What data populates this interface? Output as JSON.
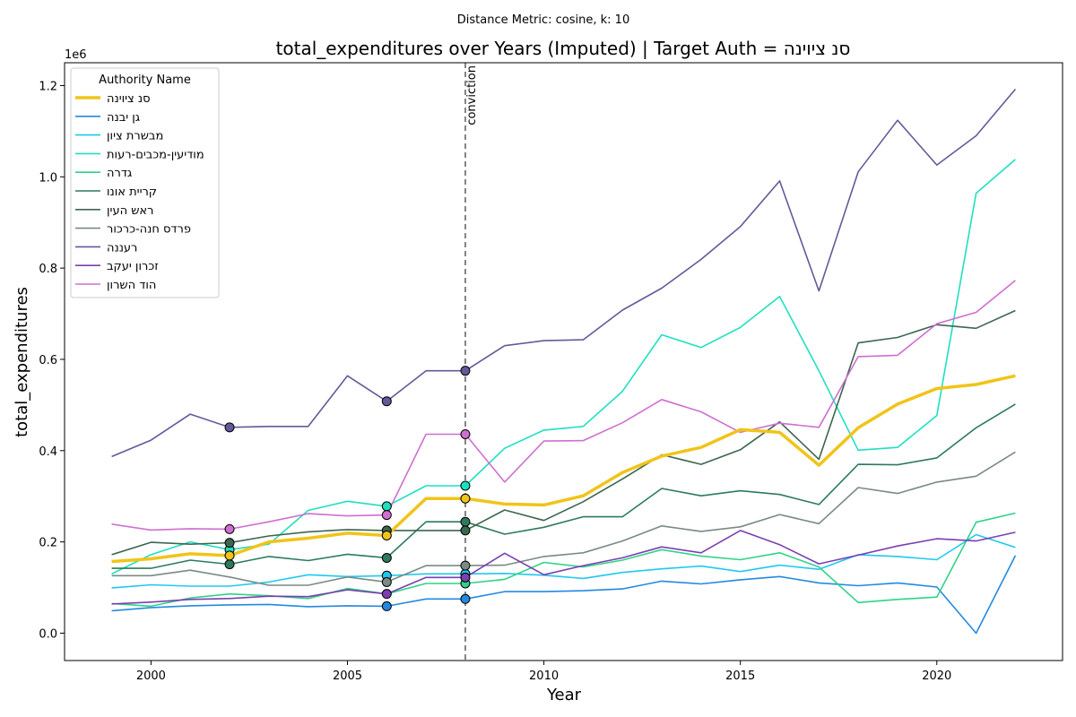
{
  "suptitle": "Distance Metric: cosine, k: 10",
  "chart_data": {
    "type": "line",
    "title": "total_expenditures over Years (Imputed) | Target Auth = סנ ציוינה",
    "xlabel": "Year",
    "ylabel": "total_expenditures",
    "y_offset_label": "1e6",
    "x_ticks": [
      2000,
      2005,
      2010,
      2015,
      2020
    ],
    "y_ticks": [
      "0.0",
      "0.2",
      "0.4",
      "0.6",
      "0.8",
      "1.0",
      "1.2"
    ],
    "xlim": [
      1997.8,
      2023.2
    ],
    "ylim": [
      -0.06,
      1.25
    ],
    "y_units": "millions",
    "grid": false,
    "legend_title": "Authority Name",
    "legend_position": "upper-left",
    "vline": {
      "x": 2008,
      "label": "conviction"
    },
    "x": [
      1999,
      2000,
      2001,
      2002,
      2003,
      2004,
      2005,
      2006,
      2007,
      2008,
      2009,
      2010,
      2011,
      2012,
      2013,
      2014,
      2015,
      2016,
      2017,
      2018,
      2019,
      2020,
      2021,
      2022
    ],
    "series": [
      {
        "name": "סנ ציוינה",
        "color": "#f0c419",
        "target": true,
        "values": [
          0.157,
          0.163,
          0.174,
          0.17,
          0.2,
          0.208,
          0.219,
          0.214,
          0.295,
          0.295,
          0.283,
          0.281,
          0.301,
          0.352,
          0.388,
          0.407,
          0.446,
          0.44,
          0.368,
          0.45,
          0.502,
          0.536,
          0.545,
          0.564
        ],
        "imputed_years": [
          2002,
          2006,
          2008
        ]
      },
      {
        "name": "גן יבנה",
        "color": "#2389e0",
        "values": [
          0.049,
          0.056,
          0.06,
          0.062,
          0.063,
          0.058,
          0.06,
          0.059,
          0.075,
          0.075,
          0.091,
          0.091,
          0.093,
          0.097,
          0.114,
          0.108,
          0.117,
          0.124,
          0.11,
          0.104,
          0.11,
          0.101,
          0.0,
          0.17
        ],
        "imputed_years": [
          2006,
          2008
        ]
      },
      {
        "name": "מבשרת ציון",
        "color": "#1fc8f0",
        "values": [
          0.099,
          0.106,
          0.103,
          0.103,
          0.112,
          0.128,
          0.124,
          0.126,
          0.13,
          0.13,
          0.131,
          0.127,
          0.12,
          0.133,
          0.141,
          0.147,
          0.135,
          0.149,
          0.14,
          0.172,
          0.168,
          0.161,
          0.216,
          0.188
        ],
        "imputed_years": [
          2006,
          2008
        ]
      },
      {
        "name": "מודיעין-מכבים-רעות",
        "color": "#1ee0c0",
        "values": [
          0.13,
          0.172,
          0.2,
          0.183,
          0.195,
          0.269,
          0.289,
          0.278,
          0.323,
          0.323,
          0.405,
          0.445,
          0.453,
          0.53,
          0.654,
          0.626,
          0.67,
          0.738,
          0.575,
          0.401,
          0.407,
          0.477,
          0.964,
          1.038
        ],
        "imputed_years": [
          2002,
          2006,
          2008
        ]
      },
      {
        "name": "גדרה",
        "color": "#2ed488",
        "values": [
          0.065,
          0.059,
          0.077,
          0.086,
          0.082,
          0.076,
          0.098,
          0.086,
          0.109,
          0.109,
          0.118,
          0.155,
          0.145,
          0.16,
          0.183,
          0.169,
          0.161,
          0.176,
          0.145,
          0.067,
          0.074,
          0.079,
          0.243,
          0.263
        ],
        "imputed_years": [
          2008
        ]
      },
      {
        "name": "קריית אונו",
        "color": "#2d7a5c",
        "values": [
          0.142,
          0.142,
          0.16,
          0.151,
          0.168,
          0.159,
          0.173,
          0.165,
          0.244,
          0.244,
          0.217,
          0.232,
          0.255,
          0.255,
          0.317,
          0.301,
          0.312,
          0.304,
          0.282,
          0.37,
          0.369,
          0.384,
          0.45,
          0.502
        ],
        "imputed_years": [
          2002,
          2006,
          2008
        ]
      },
      {
        "name": "ראש העין",
        "color": "#3d6650",
        "values": [
          0.172,
          0.199,
          0.195,
          0.198,
          0.213,
          0.222,
          0.227,
          0.225,
          0.225,
          0.225,
          0.27,
          0.247,
          0.288,
          0.338,
          0.391,
          0.37,
          0.402,
          0.463,
          0.381,
          0.636,
          0.648,
          0.676,
          0.668,
          0.707
        ],
        "imputed_years": [
          2002,
          2006,
          2008
        ]
      },
      {
        "name": "פרדס חנה-כרכור",
        "color": "#7a8a85",
        "values": [
          0.126,
          0.126,
          0.138,
          0.123,
          0.105,
          0.105,
          0.123,
          0.112,
          0.148,
          0.148,
          0.149,
          0.168,
          0.176,
          0.202,
          0.235,
          0.223,
          0.233,
          0.26,
          0.24,
          0.319,
          0.306,
          0.331,
          0.344,
          0.397
        ],
        "imputed_years": [
          2006,
          2008
        ]
      },
      {
        "name": "רעננה",
        "color": "#625a9a",
        "values": [
          0.387,
          0.423,
          0.48,
          0.451,
          0.453,
          0.453,
          0.564,
          0.508,
          0.575,
          0.575,
          0.63,
          0.641,
          0.643,
          0.708,
          0.756,
          0.819,
          0.891,
          0.991,
          0.75,
          1.011,
          1.124,
          1.026,
          1.09,
          1.192
        ],
        "imputed_years": [
          2002,
          2006,
          2008
        ]
      },
      {
        "name": "זכרון יעקב",
        "color": "#7a3fb0",
        "values": [
          0.064,
          0.068,
          0.074,
          0.076,
          0.081,
          0.08,
          0.095,
          0.086,
          0.122,
          0.122,
          0.175,
          0.128,
          0.148,
          0.165,
          0.189,
          0.176,
          0.225,
          0.194,
          0.152,
          0.171,
          0.191,
          0.207,
          0.202,
          0.221
        ],
        "imputed_years": [
          2006,
          2008
        ]
      },
      {
        "name": "הוד השרון",
        "color": "#cf6fd0",
        "values": [
          0.239,
          0.226,
          0.229,
          0.228,
          0.244,
          0.262,
          0.257,
          0.259,
          0.436,
          0.436,
          0.331,
          0.421,
          0.422,
          0.461,
          0.512,
          0.485,
          0.44,
          0.46,
          0.451,
          0.606,
          0.609,
          0.678,
          0.703,
          0.773
        ],
        "imputed_years": [
          2002,
          2006,
          2008
        ]
      }
    ]
  }
}
